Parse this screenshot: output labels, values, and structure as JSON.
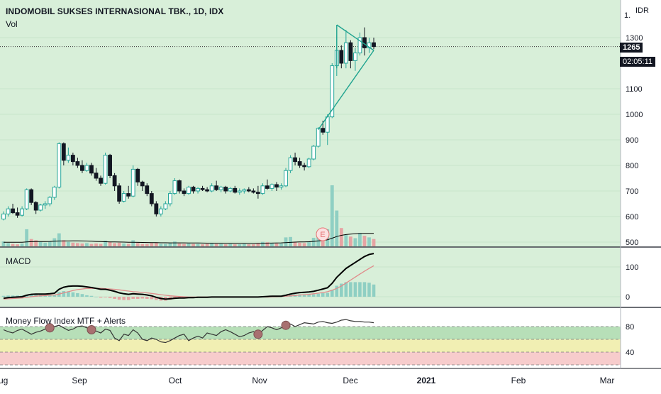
{
  "header": {
    "title": "INDOMOBIL SUKSES INTERNASIONAL TBK., 1D, IDX",
    "vol_label": "Vol",
    "currency": "IDR",
    "axis_stub": "1.",
    "earnings_marker": "E"
  },
  "price_badge": {
    "value": "1265",
    "countdown": "02:05:11"
  },
  "colors": {
    "up": "#26a69a",
    "down": "#131722",
    "vol_up": "#8fcfc3",
    "vol_down": "#e6a3a3",
    "macd_line": "#000000",
    "signal_line": "#e08a8a",
    "triangle": "#1fa38f",
    "pane_bg": "#d8efd9",
    "mfi_green": "#b7dfb8",
    "mfi_yellow": "#f1efb3",
    "mfi_red": "#f7cccc"
  },
  "chart_data": [
    {
      "type": "candlestick",
      "title": "INDOMOBIL SUKSES INTERNASIONAL TBK., 1D, IDX",
      "y_ticks": [
        1300,
        1100,
        1000,
        900,
        800,
        700,
        600,
        500
      ],
      "last_price": 1265,
      "x_ticks": [
        "Aug",
        "Sep",
        "Oct",
        "Nov",
        "Dec",
        "2021",
        "Feb",
        "Mar"
      ],
      "ohlc": [
        [
          590,
          620,
          585,
          610
        ],
        [
          610,
          640,
          600,
          630
        ],
        [
          630,
          650,
          610,
          615
        ],
        [
          615,
          635,
          595,
          605
        ],
        [
          605,
          640,
          600,
          630
        ],
        [
          630,
          710,
          625,
          705
        ],
        [
          705,
          710,
          645,
          655
        ],
        [
          655,
          660,
          610,
          625
        ],
        [
          625,
          650,
          620,
          645
        ],
        [
          645,
          660,
          630,
          650
        ],
        [
          650,
          680,
          640,
          675
        ],
        [
          675,
          720,
          665,
          715
        ],
        [
          715,
          890,
          710,
          885
        ],
        [
          885,
          890,
          800,
          820
        ],
        [
          820,
          870,
          810,
          840
        ],
        [
          840,
          850,
          800,
          815
        ],
        [
          815,
          830,
          790,
          800
        ],
        [
          800,
          820,
          770,
          780
        ],
        [
          780,
          810,
          775,
          800
        ],
        [
          800,
          810,
          760,
          770
        ],
        [
          770,
          790,
          740,
          750
        ],
        [
          750,
          760,
          720,
          730
        ],
        [
          730,
          850,
          725,
          840
        ],
        [
          840,
          845,
          750,
          760
        ],
        [
          760,
          770,
          700,
          720
        ],
        [
          720,
          730,
          650,
          660
        ],
        [
          660,
          700,
          655,
          690
        ],
        [
          690,
          720,
          670,
          680
        ],
        [
          680,
          800,
          675,
          785
        ],
        [
          785,
          790,
          720,
          735
        ],
        [
          735,
          740,
          700,
          720
        ],
        [
          720,
          730,
          680,
          690
        ],
        [
          690,
          700,
          640,
          650
        ],
        [
          650,
          660,
          600,
          610
        ],
        [
          610,
          640,
          600,
          630
        ],
        [
          630,
          660,
          625,
          650
        ],
        [
          650,
          700,
          640,
          690
        ],
        [
          690,
          750,
          685,
          740
        ],
        [
          740,
          745,
          690,
          700
        ],
        [
          700,
          710,
          680,
          690
        ],
        [
          690,
          720,
          685,
          715
        ],
        [
          715,
          720,
          690,
          700
        ],
        [
          700,
          715,
          690,
          710
        ],
        [
          710,
          720,
          700,
          705
        ],
        [
          705,
          715,
          695,
          700
        ],
        [
          700,
          730,
          695,
          720
        ],
        [
          720,
          740,
          700,
          705
        ],
        [
          705,
          720,
          695,
          715
        ],
        [
          715,
          720,
          690,
          700
        ],
        [
          700,
          715,
          695,
          710
        ],
        [
          710,
          720,
          690,
          695
        ],
        [
          695,
          710,
          685,
          700
        ],
        [
          700,
          710,
          690,
          705
        ],
        [
          705,
          715,
          695,
          700
        ],
        [
          700,
          710,
          690,
          695
        ],
        [
          695,
          720,
          670,
          690
        ],
        [
          690,
          730,
          685,
          720
        ],
        [
          720,
          745,
          705,
          710
        ],
        [
          710,
          730,
          700,
          725
        ],
        [
          725,
          735,
          700,
          715
        ],
        [
          715,
          730,
          705,
          720
        ],
        [
          720,
          790,
          715,
          780
        ],
        [
          780,
          840,
          770,
          830
        ],
        [
          830,
          850,
          800,
          815
        ],
        [
          815,
          830,
          790,
          800
        ],
        [
          800,
          810,
          780,
          795
        ],
        [
          795,
          830,
          790,
          825
        ],
        [
          825,
          880,
          820,
          875
        ],
        [
          875,
          950,
          870,
          945
        ],
        [
          945,
          975,
          920,
          930
        ],
        [
          930,
          1000,
          880,
          990
        ],
        [
          990,
          1200,
          985,
          1190
        ],
        [
          1190,
          1310,
          1150,
          1250
        ],
        [
          1250,
          1270,
          1180,
          1200
        ],
        [
          1200,
          1330,
          1180,
          1280
        ],
        [
          1280,
          1290,
          1180,
          1210
        ],
        [
          1210,
          1260,
          1170,
          1240
        ],
        [
          1240,
          1320,
          1230,
          1300
        ],
        [
          1300,
          1340,
          1230,
          1260
        ],
        [
          1260,
          1300,
          1240,
          1280
        ],
        [
          1280,
          1300,
          1255,
          1265
        ]
      ],
      "volume": [
        120,
        80,
        60,
        50,
        70,
        420,
        180,
        150,
        110,
        90,
        120,
        200,
        320,
        150,
        110,
        90,
        80,
        70,
        80,
        60,
        70,
        60,
        140,
        110,
        80,
        90,
        70,
        60,
        150,
        80,
        60,
        60,
        80,
        90,
        60,
        60,
        80,
        120,
        70,
        60,
        70,
        60,
        60,
        50,
        60,
        70,
        60,
        60,
        50,
        60,
        50,
        50,
        60,
        50,
        50,
        80,
        110,
        100,
        80,
        70,
        70,
        220,
        230,
        110,
        90,
        80,
        120,
        210,
        260,
        180,
        420,
        1500,
        880,
        450,
        280,
        240,
        200,
        330,
        260,
        220,
        180
      ],
      "volume_ma": [
        100,
        100,
        100,
        100,
        100,
        110,
        115,
        118,
        118,
        118,
        120,
        125,
        130,
        132,
        133,
        134,
        134,
        133,
        130,
        125,
        120,
        116,
        113,
        110,
        108,
        106,
        104,
        102,
        100,
        98,
        96,
        94,
        92,
        90,
        88,
        87,
        86,
        86,
        86,
        85,
        84,
        83,
        82,
        80,
        79,
        78,
        77,
        76,
        75,
        74,
        73,
        72,
        71,
        70,
        70,
        72,
        75,
        78,
        80,
        82,
        86,
        92,
        98,
        104,
        108,
        110,
        114,
        122,
        132,
        142,
        160,
        200,
        240,
        270,
        290,
        300,
        310,
        315,
        318,
        320,
        320
      ],
      "annotations": [
        "symmetrical triangle"
      ]
    },
    {
      "type": "line",
      "title": "MACD",
      "y_ticks": [
        100,
        0
      ],
      "series": [
        {
          "values": [
            -5,
            -3,
            -2,
            -1,
            0,
            5,
            8,
            9,
            9,
            9,
            10,
            12,
            25,
            32,
            35,
            36,
            36,
            35,
            33,
            31,
            28,
            25,
            25,
            22,
            18,
            13,
            10,
            8,
            10,
            9,
            8,
            6,
            3,
            -2,
            -6,
            -8,
            -7,
            -5,
            -4,
            -4,
            -3,
            -3,
            -2,
            -2,
            -2,
            -1,
            -1,
            -1,
            -1,
            -1,
            -1,
            -1,
            -1,
            -1,
            -1,
            -1,
            0,
            1,
            2,
            2,
            2,
            5,
            9,
            12,
            14,
            15,
            16,
            18,
            22,
            26,
            30,
            45,
            65,
            80,
            95,
            105,
            115,
            125,
            135,
            142,
            145
          ]
        },
        {
          "values": [
            -8,
            -7,
            -6,
            -5,
            -4,
            -2,
            0,
            2,
            3,
            4,
            5,
            6,
            9,
            13,
            17,
            21,
            24,
            26,
            28,
            28,
            28,
            28,
            27,
            26,
            25,
            23,
            21,
            19,
            17,
            16,
            14,
            13,
            11,
            9,
            7,
            5,
            3,
            2,
            1,
            0,
            -1,
            -1,
            -1,
            -1,
            -1,
            -1,
            -1,
            -1,
            -1,
            -1,
            -1,
            -1,
            -1,
            -1,
            -1,
            -1,
            -1,
            -1,
            0,
            0,
            1,
            2,
            3,
            4,
            6,
            7,
            8,
            10,
            12,
            14,
            17,
            22,
            28,
            36,
            46,
            56,
            66,
            76,
            86,
            95,
            104
          ]
        }
      ]
    },
    {
      "type": "line",
      "title": "Money Flow Index MTF + Alerts",
      "y_ticks": [
        80,
        40
      ],
      "series": [
        {
          "values": [
            75,
            72,
            70,
            74,
            76,
            72,
            68,
            71,
            73,
            76,
            78,
            80,
            82,
            78,
            74,
            76,
            80,
            81,
            78,
            75,
            73,
            70,
            76,
            74,
            62,
            58,
            68,
            66,
            75,
            70,
            60,
            58,
            62,
            60,
            56,
            55,
            58,
            62,
            66,
            68,
            58,
            62,
            65,
            62,
            70,
            68,
            66,
            72,
            75,
            72,
            68,
            64,
            66,
            70,
            72,
            68,
            74,
            80,
            78,
            75,
            78,
            82,
            84,
            80,
            83,
            86,
            85,
            84,
            87,
            88,
            86,
            85,
            87,
            90,
            91,
            89,
            88,
            88,
            87,
            87,
            86
          ]
        }
      ],
      "alerts": [
        10,
        19,
        55,
        61
      ]
    }
  ]
}
